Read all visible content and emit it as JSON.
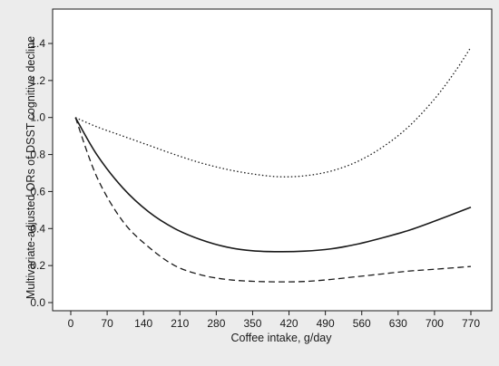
{
  "chart_data": {
    "type": "line",
    "title": "",
    "xlabel": "Coffee intake, g/day",
    "ylabel": "Multivariate-adjusted ORs of DSST cognitive decline",
    "xlim": [
      0,
      770
    ],
    "ylim": [
      0,
      1.4
    ],
    "x_ticks": [
      0,
      70,
      140,
      210,
      280,
      350,
      420,
      490,
      560,
      630,
      700,
      770
    ],
    "y_ticks": [
      0.0,
      0.2,
      0.4,
      0.6,
      0.8,
      1.0,
      1.2,
      1.4
    ],
    "x_tick_labels": [
      "0",
      "70",
      "140",
      "210",
      "280",
      "350",
      "420",
      "490",
      "560",
      "630",
      "700",
      "770"
    ],
    "y_tick_labels": [
      "0.0",
      "0.2",
      "0.4",
      "0.6",
      "0.8",
      "1.0",
      "1.2",
      "1.4"
    ],
    "grid": false,
    "legend": "none",
    "series": [
      {
        "style": "solid",
        "x": [
          9,
          50,
          100,
          150,
          200,
          250,
          300,
          350,
          400,
          450,
          500,
          550,
          600,
          650,
          700,
          770
        ],
        "y": [
          1.0,
          0.8,
          0.62,
          0.49,
          0.4,
          0.34,
          0.3,
          0.28,
          0.275,
          0.278,
          0.29,
          0.315,
          0.35,
          0.39,
          0.44,
          0.515
        ]
      },
      {
        "style": "dashed",
        "x": [
          9,
          50,
          100,
          150,
          200,
          250,
          300,
          350,
          400,
          450,
          500,
          550,
          600,
          650,
          700,
          770
        ],
        "y": [
          1.0,
          0.68,
          0.44,
          0.3,
          0.2,
          0.15,
          0.125,
          0.115,
          0.112,
          0.114,
          0.125,
          0.14,
          0.155,
          0.17,
          0.18,
          0.195
        ]
      },
      {
        "style": "dotted",
        "x": [
          9,
          50,
          100,
          150,
          200,
          250,
          300,
          350,
          400,
          450,
          500,
          550,
          600,
          650,
          700,
          740,
          770
        ],
        "y": [
          1.0,
          0.95,
          0.9,
          0.85,
          0.8,
          0.755,
          0.72,
          0.695,
          0.68,
          0.685,
          0.71,
          0.76,
          0.84,
          0.95,
          1.1,
          1.25,
          1.38
        ]
      }
    ]
  }
}
